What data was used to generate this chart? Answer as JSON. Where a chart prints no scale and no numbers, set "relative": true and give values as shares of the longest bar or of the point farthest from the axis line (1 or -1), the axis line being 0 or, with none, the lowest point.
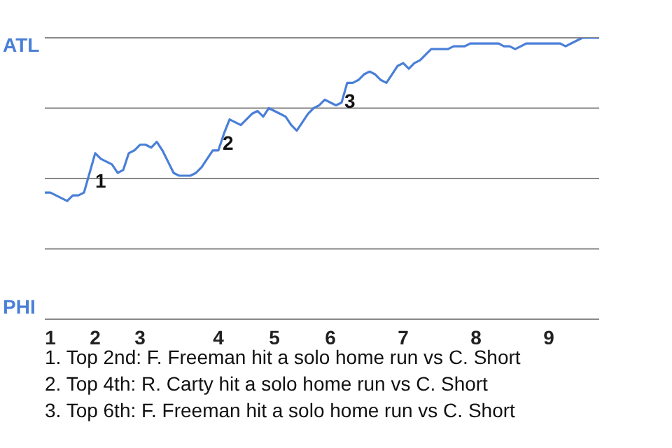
{
  "chart_data": {
    "type": "line",
    "relative": true,
    "categories": [
      null,
      "1",
      null,
      null,
      null,
      null,
      null,
      null,
      null,
      "2",
      null,
      null,
      null,
      null,
      null,
      null,
      null,
      "3",
      null,
      null,
      null,
      null,
      null,
      null,
      null,
      null,
      null,
      null,
      null,
      null,
      null,
      "4",
      null,
      null,
      null,
      null,
      null,
      null,
      null,
      null,
      null,
      "5",
      null,
      null,
      null,
      null,
      null,
      null,
      null,
      null,
      null,
      "6",
      null,
      null,
      null,
      null,
      null,
      null,
      null,
      null,
      null,
      null,
      null,
      null,
      "7",
      null,
      null,
      null,
      null,
      null,
      null,
      null,
      null,
      null,
      null,
      null,
      null,
      "8",
      null,
      null,
      null,
      null,
      null,
      null,
      null,
      null,
      null,
      null,
      null,
      null,
      "9",
      null,
      null,
      null,
      null,
      null,
      null,
      null,
      null,
      null
    ],
    "series": [
      {
        "color": "#4a7fd8",
        "values": [
          0.45,
          0.45,
          0.44,
          0.43,
          0.42,
          0.44,
          0.44,
          0.45,
          0.52,
          0.59,
          0.57,
          0.56,
          0.55,
          0.52,
          0.53,
          0.59,
          0.6,
          0.62,
          0.62,
          0.61,
          0.63,
          0.6,
          0.56,
          0.52,
          0.51,
          0.51,
          0.51,
          0.52,
          0.54,
          0.57,
          0.6,
          0.6,
          0.66,
          0.71,
          0.7,
          0.69,
          0.71,
          0.73,
          0.74,
          0.72,
          0.75,
          0.74,
          0.73,
          0.72,
          0.69,
          0.67,
          0.7,
          0.73,
          0.75,
          0.76,
          0.78,
          0.77,
          0.76,
          0.77,
          0.84,
          0.84,
          0.85,
          0.87,
          0.88,
          0.87,
          0.85,
          0.84,
          0.87,
          0.9,
          0.91,
          0.89,
          0.91,
          0.92,
          0.94,
          0.96,
          0.96,
          0.96,
          0.96,
          0.97,
          0.97,
          0.97,
          0.98,
          0.98,
          0.98,
          0.98,
          0.98,
          0.98,
          0.97,
          0.97,
          0.96,
          0.97,
          0.98,
          0.98,
          0.98,
          0.98,
          0.98,
          0.98,
          0.98,
          0.97,
          0.98,
          0.99,
          1,
          1,
          1,
          1
        ]
      }
    ],
    "marker": "none",
    "line_style": "solid",
    "ref_lines": [
      {
        "axis": "y",
        "value": 1,
        "color": "#888888"
      },
      {
        "axis": "y",
        "value": 0.75,
        "color": "#888888"
      },
      {
        "axis": "y",
        "value": 0.5,
        "color": "#888888"
      },
      {
        "axis": "y",
        "value": 0.25,
        "color": "#888888"
      }
    ],
    "annotations": [
      "ATL",
      "PHI",
      "1",
      "2",
      "3",
      "1. Top 2nd: F. Freeman hit a solo home run vs C. Short",
      "2. Top 4th: R. Carty hit a solo home run vs C. Short",
      "3. Top 6th: F. Freeman hit a solo home run vs C. Short"
    ]
  }
}
